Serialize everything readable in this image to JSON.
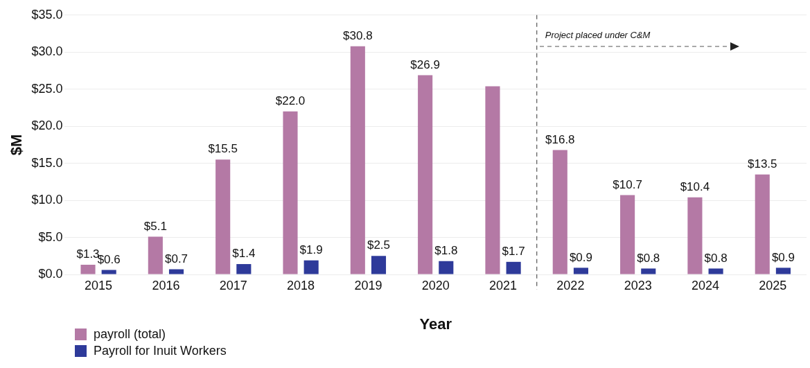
{
  "chart_data": {
    "type": "bar",
    "xlabel": "Year",
    "ylabel": "$M",
    "categories": [
      "2015",
      "2016",
      "2017",
      "2018",
      "2019",
      "2020",
      "2021",
      "2022",
      "2023",
      "2024",
      "2025"
    ],
    "series": [
      {
        "name": "payroll (total)",
        "color": "#b479a5",
        "values": [
          1.3,
          5.1,
          15.5,
          22.0,
          30.8,
          26.9,
          25.4,
          16.8,
          10.7,
          10.4,
          13.5
        ],
        "value_labels": [
          "$1.3",
          "$5.1",
          "$15.5",
          "$22.0",
          "$30.8",
          "$26.9",
          null,
          "$16.8",
          "$10.7",
          "$10.4",
          "$13.5"
        ]
      },
      {
        "name": "Payroll for Inuit Workers",
        "color": "#2e3a9a",
        "values": [
          0.6,
          0.7,
          1.4,
          1.9,
          2.5,
          1.8,
          1.7,
          0.9,
          0.8,
          0.8,
          0.9
        ],
        "value_labels": [
          "$0.6",
          "$0.7",
          "$1.4",
          "$1.9",
          "$2.5",
          "$1.8",
          "$1.7",
          "$0.9",
          "$0.8",
          "$0.8",
          "$0.9"
        ]
      }
    ],
    "ylim": [
      0,
      35
    ],
    "yticks": [
      {
        "value": 0,
        "label": "$0.0"
      },
      {
        "value": 5,
        "label": "$5.0"
      },
      {
        "value": 10,
        "label": "$10.0"
      },
      {
        "value": 15,
        "label": "$15.0"
      },
      {
        "value": 20,
        "label": "$20.0"
      },
      {
        "value": 25,
        "label": "$25.0"
      },
      {
        "value": 30,
        "label": "$30.0"
      },
      {
        "value": 35,
        "label": "$35.0"
      }
    ],
    "grid": "y",
    "legend": "bottom left",
    "ref_lines": [
      {
        "axis": "x",
        "value": "2022",
        "label": "Project placed under C&M",
        "line_style": "dashed",
        "color": "#555555"
      }
    ]
  }
}
